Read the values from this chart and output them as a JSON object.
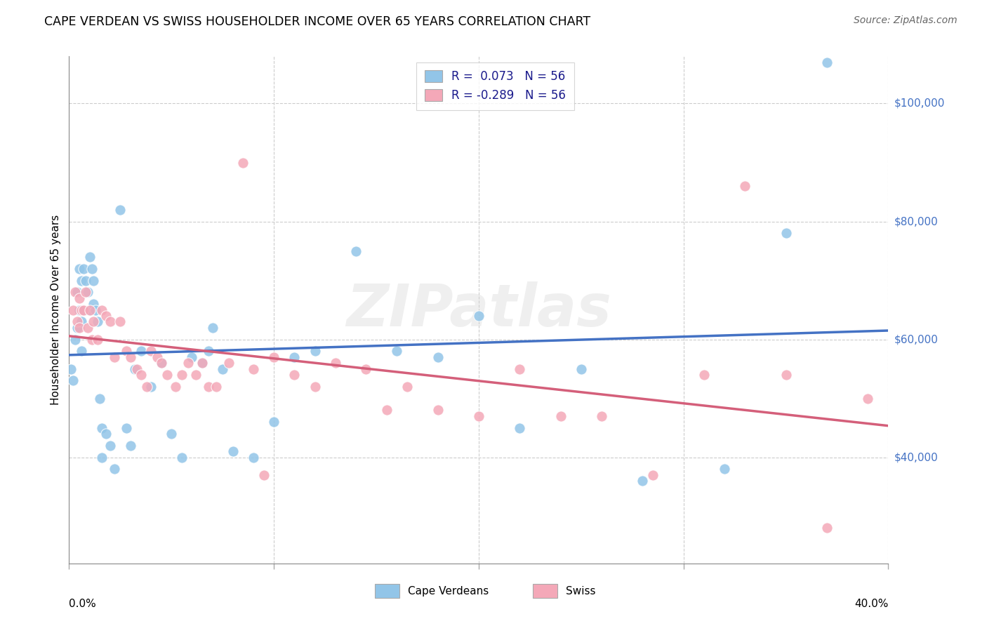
{
  "title": "CAPE VERDEAN VS SWISS HOUSEHOLDER INCOME OVER 65 YEARS CORRELATION CHART",
  "source": "Source: ZipAtlas.com",
  "ylabel": "Householder Income Over 65 years",
  "y_tick_labels": [
    "$40,000",
    "$60,000",
    "$80,000",
    "$100,000"
  ],
  "y_tick_values": [
    40000,
    60000,
    80000,
    100000
  ],
  "xlim": [
    0.0,
    0.4
  ],
  "ylim": [
    22000,
    108000
  ],
  "legend_r_blue": "0.073",
  "legend_r_pink": "-0.289",
  "legend_n": "56",
  "blue_color": "#92c5e8",
  "pink_color": "#f4a8b8",
  "line_blue": "#4472c4",
  "line_pink": "#d45f7a",
  "watermark": "ZIPatlas",
  "blue_x": [
    0.001,
    0.002,
    0.003,
    0.004,
    0.004,
    0.005,
    0.005,
    0.006,
    0.006,
    0.006,
    0.007,
    0.007,
    0.008,
    0.009,
    0.01,
    0.01,
    0.011,
    0.012,
    0.012,
    0.013,
    0.014,
    0.015,
    0.016,
    0.016,
    0.018,
    0.02,
    0.022,
    0.025,
    0.028,
    0.03,
    0.032,
    0.035,
    0.04,
    0.045,
    0.05,
    0.055,
    0.06,
    0.065,
    0.068,
    0.07,
    0.075,
    0.08,
    0.09,
    0.1,
    0.11,
    0.12,
    0.14,
    0.16,
    0.18,
    0.2,
    0.22,
    0.25,
    0.28,
    0.32,
    0.35,
    0.37
  ],
  "blue_y": [
    55000,
    53000,
    60000,
    68000,
    62000,
    65000,
    72000,
    70000,
    63000,
    58000,
    72000,
    65000,
    70000,
    68000,
    74000,
    65000,
    72000,
    70000,
    66000,
    65000,
    63000,
    50000,
    45000,
    40000,
    44000,
    42000,
    38000,
    82000,
    45000,
    42000,
    55000,
    58000,
    52000,
    56000,
    44000,
    40000,
    57000,
    56000,
    58000,
    62000,
    55000,
    41000,
    40000,
    46000,
    57000,
    58000,
    75000,
    58000,
    57000,
    64000,
    45000,
    55000,
    36000,
    38000,
    78000,
    107000
  ],
  "pink_x": [
    0.002,
    0.003,
    0.004,
    0.005,
    0.005,
    0.006,
    0.007,
    0.008,
    0.009,
    0.01,
    0.011,
    0.012,
    0.014,
    0.016,
    0.018,
    0.02,
    0.022,
    0.025,
    0.028,
    0.03,
    0.033,
    0.035,
    0.038,
    0.04,
    0.043,
    0.045,
    0.048,
    0.052,
    0.055,
    0.058,
    0.062,
    0.065,
    0.068,
    0.072,
    0.078,
    0.085,
    0.09,
    0.095,
    0.1,
    0.11,
    0.12,
    0.13,
    0.145,
    0.155,
    0.165,
    0.18,
    0.2,
    0.22,
    0.24,
    0.26,
    0.285,
    0.31,
    0.33,
    0.35,
    0.37,
    0.39
  ],
  "pink_y": [
    65000,
    68000,
    63000,
    67000,
    62000,
    65000,
    65000,
    68000,
    62000,
    65000,
    60000,
    63000,
    60000,
    65000,
    64000,
    63000,
    57000,
    63000,
    58000,
    57000,
    55000,
    54000,
    52000,
    58000,
    57000,
    56000,
    54000,
    52000,
    54000,
    56000,
    54000,
    56000,
    52000,
    52000,
    56000,
    90000,
    55000,
    37000,
    57000,
    54000,
    52000,
    56000,
    55000,
    48000,
    52000,
    48000,
    47000,
    55000,
    47000,
    47000,
    37000,
    54000,
    86000,
    54000,
    28000,
    50000
  ]
}
